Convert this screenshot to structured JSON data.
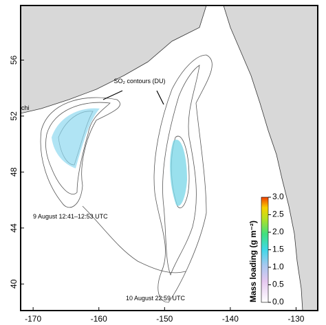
{
  "map": {
    "xaxis": {
      "lim": [
        -171.9,
        -126.7
      ],
      "ticks": [
        -170,
        -160,
        -150,
        -140,
        -130
      ]
    },
    "yaxis": {
      "lim": [
        38.1,
        59.9
      ],
      "ticks": [
        40,
        44,
        48,
        52,
        56
      ]
    },
    "annotations": {
      "contours": "SO₂ contours (DU)",
      "volcano": "Kasatochi",
      "first_plume": "9 August 12:41–12:53 UTC",
      "second_plume": "10 August 22:59 UTC"
    }
  },
  "colorbar": {
    "lim": [
      0,
      3
    ],
    "ticks": [
      {
        "value": 0,
        "label": "0.0"
      },
      {
        "value": 0.5,
        "label": "0.5"
      },
      {
        "value": 1,
        "label": "1.0"
      },
      {
        "value": 1.5,
        "label": "1.5"
      },
      {
        "value": 2,
        "label": "2.0"
      },
      {
        "value": 2.5,
        "label": "2.5"
      },
      {
        "value": 3,
        "label": "3.0"
      }
    ],
    "label": "Mass loading (g m⁻²)"
  }
}
